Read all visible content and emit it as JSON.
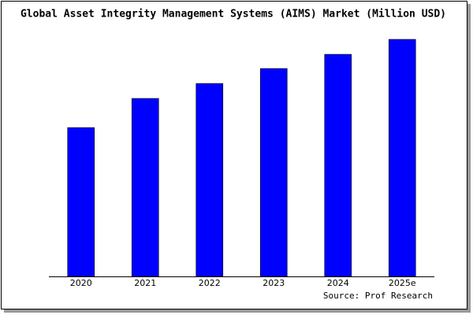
{
  "chart_data": {
    "type": "bar",
    "title": "Global Asset Integrity Management Systems (AIMS) Market (Million USD)",
    "categories": [
      "2020",
      "2021",
      "2022",
      "2023",
      "2024",
      "2025e"
    ],
    "values": [
      189,
      226,
      245,
      264,
      282,
      301
    ],
    "color": "#0000ff",
    "source": "Source: Prof Research"
  }
}
